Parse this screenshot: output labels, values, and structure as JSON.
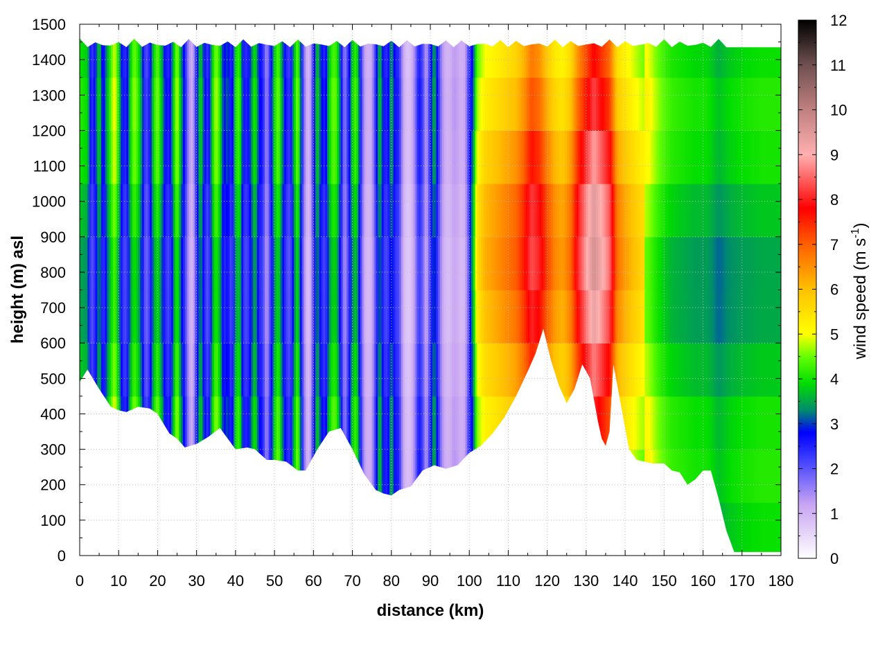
{
  "chart_data": {
    "type": "heatmap",
    "title": "",
    "xlabel": "distance (km)",
    "ylabel": "height (m) asl",
    "xlim": [
      0,
      180
    ],
    "ylim": [
      0,
      1500
    ],
    "x_ticks": [
      0,
      10,
      20,
      30,
      40,
      50,
      60,
      70,
      80,
      90,
      100,
      110,
      120,
      130,
      140,
      150,
      160,
      170,
      180
    ],
    "y_ticks": [
      0,
      100,
      200,
      300,
      400,
      500,
      600,
      700,
      800,
      900,
      1000,
      1100,
      1200,
      1300,
      1400,
      1500
    ],
    "grid": true,
    "colorbar": {
      "label_prefix": "wind speed (m s",
      "label_sup": "-1",
      "label_suffix": ")",
      "range": [
        0,
        12
      ],
      "ticks": [
        0,
        1,
        2,
        3,
        4,
        5,
        6,
        7,
        8,
        9,
        10,
        11,
        12
      ],
      "placement": "right",
      "palette": [
        {
          "value": 0,
          "color": "#ffffff"
        },
        {
          "value": 1.2,
          "color": "#c8a4f2"
        },
        {
          "value": 2.2,
          "color": "#4040ff"
        },
        {
          "value": 2.8,
          "color": "#0000ff"
        },
        {
          "value": 3.3,
          "color": "#008b6e"
        },
        {
          "value": 3.9,
          "color": "#00dd00"
        },
        {
          "value": 4.5,
          "color": "#66ff00"
        },
        {
          "value": 5.0,
          "color": "#ffff00"
        },
        {
          "value": 6.0,
          "color": "#ffc000"
        },
        {
          "value": 7.0,
          "color": "#ff6000"
        },
        {
          "value": 7.8,
          "color": "#ff0000"
        },
        {
          "value": 9.0,
          "color": "#ffb0b0"
        },
        {
          "value": 10.0,
          "color": "#c08080"
        },
        {
          "value": 11.0,
          "color": "#705050"
        },
        {
          "value": 12.0,
          "color": "#000000"
        }
      ]
    },
    "terrain": {
      "x": [
        0,
        2,
        5,
        8,
        10,
        12,
        15,
        18,
        20,
        23,
        25,
        27,
        30,
        33,
        36,
        38,
        40,
        43,
        45,
        48,
        50,
        53,
        56,
        58,
        61,
        64,
        67,
        70,
        73,
        76,
        78,
        80,
        82,
        85,
        88,
        91,
        94,
        97,
        100,
        103,
        106,
        109,
        112,
        115,
        117,
        119,
        121,
        123,
        125,
        127,
        129,
        131,
        133,
        134,
        135,
        136,
        137,
        139,
        141,
        143,
        145,
        147,
        150,
        152,
        154,
        156,
        158,
        160,
        162,
        164,
        166,
        168,
        170,
        175,
        180
      ],
      "height": [
        490,
        525,
        470,
        420,
        410,
        405,
        420,
        415,
        400,
        345,
        330,
        305,
        315,
        335,
        360,
        330,
        300,
        305,
        300,
        270,
        270,
        265,
        240,
        240,
        300,
        350,
        360,
        300,
        230,
        185,
        175,
        170,
        185,
        195,
        240,
        255,
        245,
        255,
        290,
        310,
        345,
        390,
        450,
        520,
        570,
        640,
        550,
        480,
        430,
        470,
        540,
        500,
        380,
        330,
        310,
        350,
        540,
        420,
        300,
        270,
        265,
        260,
        260,
        240,
        235,
        200,
        215,
        240,
        240,
        160,
        70,
        10,
        10,
        10,
        10
      ]
    },
    "wind_profile": {
      "x": [
        0,
        2,
        3,
        4,
        5,
        6,
        7,
        8,
        9,
        10,
        11,
        12,
        13,
        14,
        15,
        16,
        17,
        18,
        19,
        20,
        21,
        22,
        23,
        24,
        25,
        26,
        27,
        28,
        29,
        30,
        31,
        32,
        33,
        34,
        35,
        36,
        37,
        38,
        39,
        40,
        41,
        42,
        43,
        44,
        45,
        46,
        47,
        48,
        49,
        50,
        51,
        52,
        53,
        54,
        55,
        56,
        57,
        58,
        59,
        60,
        61,
        62,
        63,
        64,
        65,
        66,
        67,
        68,
        69,
        70,
        71,
        72,
        73,
        74,
        75,
        76,
        77,
        78,
        79,
        80,
        81,
        82,
        83,
        84,
        85,
        86,
        87,
        88,
        89,
        90,
        91,
        92,
        93,
        94,
        95,
        96,
        97,
        98,
        99,
        100,
        101,
        102,
        104,
        106,
        108,
        110,
        112,
        114,
        116,
        118,
        120,
        122,
        124,
        126,
        128,
        130,
        132,
        134,
        136,
        138,
        140,
        142,
        144,
        146,
        148,
        150,
        152,
        155,
        158,
        161,
        164,
        167,
        170,
        175,
        180
      ],
      "speed_m_s": [
        4.0,
        3.8,
        2.2,
        2.8,
        3.9,
        2.5,
        3.5,
        4.3,
        5.0,
        3.9,
        2.6,
        2.4,
        3.8,
        4.6,
        4.1,
        3.2,
        2.0,
        2.6,
        3.9,
        4.5,
        3.6,
        2.7,
        2.4,
        3.6,
        4.8,
        3.4,
        2.6,
        1.4,
        1.0,
        2.6,
        3.9,
        2.8,
        2.2,
        3.8,
        4.7,
        4.0,
        2.7,
        3.1,
        2.3,
        3.9,
        4.3,
        2.6,
        2.4,
        3.2,
        4.1,
        2.8,
        2.5,
        1.4,
        2.6,
        3.8,
        4.5,
        3.3,
        2.5,
        2.2,
        3.6,
        4.6,
        2.6,
        1.2,
        0.9,
        2.5,
        3.9,
        2.8,
        2.4,
        3.7,
        4.4,
        4.2,
        2.9,
        1.5,
        2.5,
        3.8,
        4.3,
        2.7,
        1.3,
        1.0,
        1.2,
        2.4,
        3.8,
        2.6,
        2.4,
        3.5,
        2.6,
        2.4,
        1.2,
        0.8,
        0.9,
        1.5,
        2.6,
        2.2,
        1.2,
        2.6,
        3.6,
        2.4,
        1.4,
        1.0,
        1.0,
        1.3,
        1.2,
        1.0,
        1.2,
        2.5,
        3.3,
        5.0,
        5.6,
        5.8,
        6.0,
        6.2,
        6.4,
        6.9,
        7.6,
        7.3,
        6.6,
        6.0,
        5.8,
        6.3,
        7.4,
        8.1,
        8.8,
        8.3,
        7.8,
        6.2,
        5.8,
        5.5,
        5.2,
        5.0,
        4.6,
        4.3,
        4.1,
        4.0,
        3.9,
        3.9,
        3.6,
        3.8,
        3.9,
        4.0,
        4.0
      ]
    }
  }
}
